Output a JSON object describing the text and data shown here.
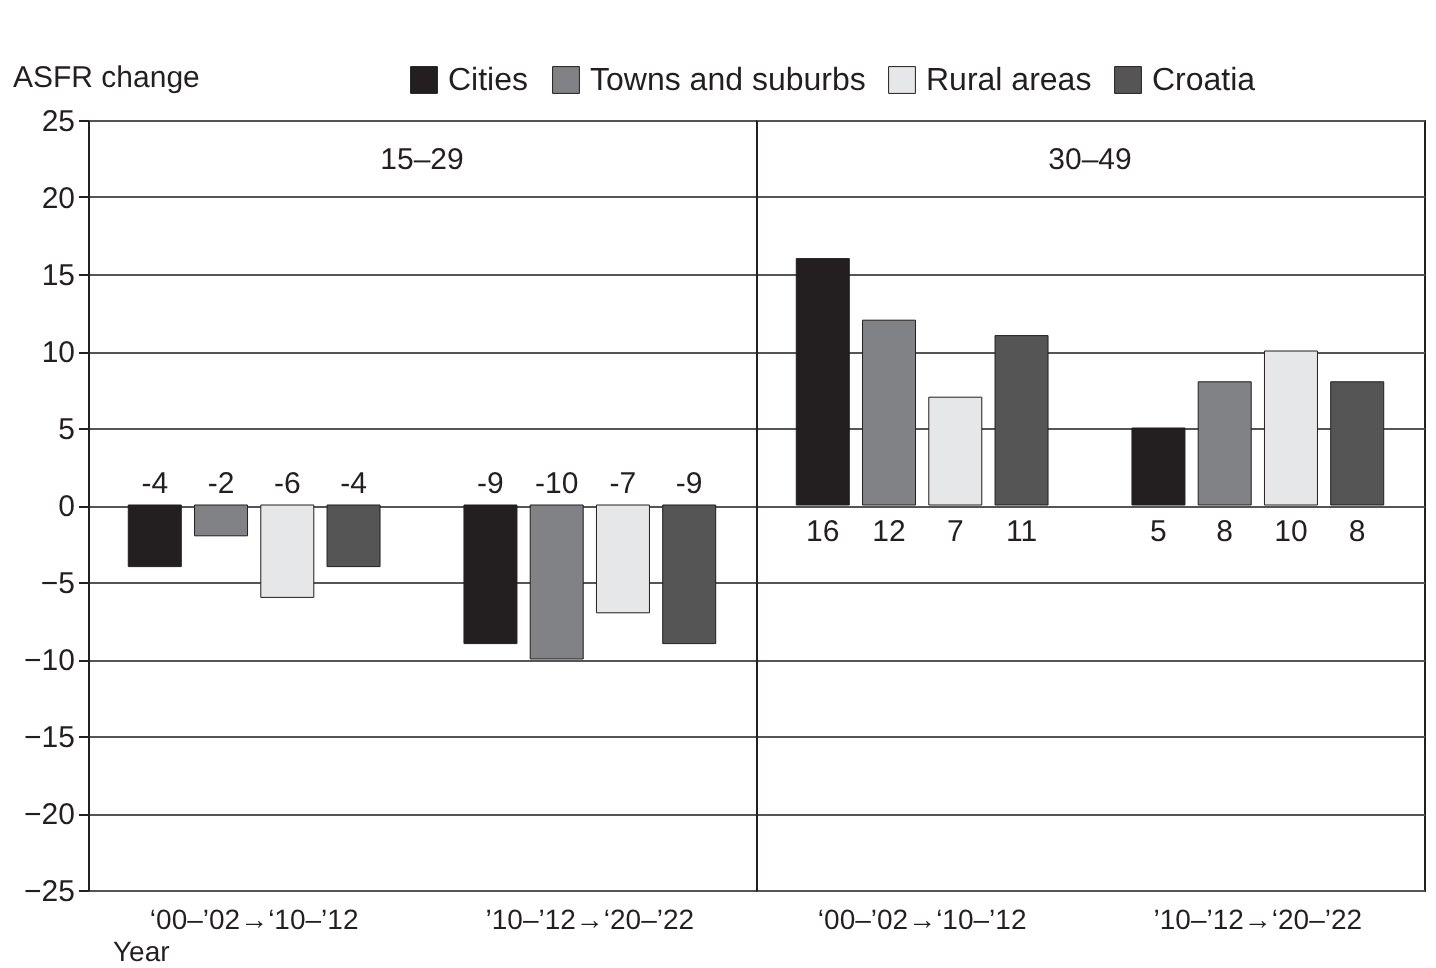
{
  "chart_data": [
    {
      "type": "bar",
      "title": "15–29",
      "ylabel": "ASFR change",
      "xlabel": "Year",
      "categories": [
        "‘00–’02→‘10–’12",
        "’10–’12→‘20–’22"
      ],
      "series": [
        {
          "name": "Cities",
          "color": "#231f20",
          "values": [
            -4,
            -9
          ]
        },
        {
          "name": "Towns and suburbs",
          "color": "#808285",
          "values": [
            -2,
            -10
          ]
        },
        {
          "name": "Rural areas",
          "color": "#e6e7e8",
          "values": [
            -6,
            -7
          ]
        },
        {
          "name": "Croatia",
          "color": "#555555",
          "values": [
            -4,
            -9
          ]
        }
      ],
      "ylim": [
        -25,
        25
      ],
      "yticks": [
        -25,
        -20,
        -15,
        -10,
        -5,
        0,
        5,
        10,
        15,
        20,
        25
      ],
      "grid": "y",
      "legend": "top right",
      "data_labels": true
    },
    {
      "type": "bar",
      "title": "30–49",
      "categories": [
        "‘00–’02→‘10–’12",
        "’10–’12→‘20–’22"
      ],
      "series": [
        {
          "color": "#231f20",
          "values": [
            16,
            5
          ]
        },
        {
          "color": "#808285",
          "values": [
            12,
            8
          ]
        },
        {
          "color": "#e6e7e8",
          "values": [
            7,
            10
          ]
        },
        {
          "color": "#555555",
          "values": [
            11,
            8
          ]
        }
      ],
      "ylim": [
        -25,
        25
      ],
      "yticks": [
        -25,
        -20,
        -15,
        -10,
        -5,
        0,
        5,
        10,
        15,
        20,
        25
      ],
      "grid": "y",
      "legend": false,
      "tick_labels": "x",
      "data_labels": true
    }
  ]
}
